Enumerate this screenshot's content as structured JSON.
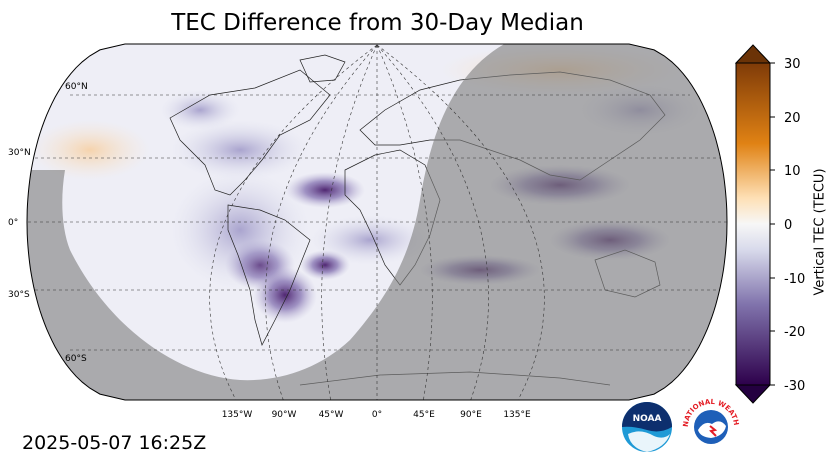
{
  "title": "TEC Difference from 30-Day Median",
  "timestamp": "2025-05-07 16:25Z",
  "colorbar": {
    "label": "Vertical TEC (TECU)",
    "ticks": [
      "30",
      "20",
      "10",
      "0",
      "-10",
      "-20",
      "-30"
    ],
    "min": -30,
    "max": 30,
    "colors": {
      "positive_max": "#7f3b08",
      "positive_mid": "#e08214",
      "positive_low": "#fee0b6",
      "zero": "#f7f7f7",
      "negative_low": "#d8daeb",
      "negative_mid": "#8073ac",
      "negative_max": "#2d004b"
    }
  },
  "map": {
    "projection": "Robinson",
    "lat_labels": [
      "60°N",
      "30°N",
      "0°",
      "30°S",
      "60°S"
    ],
    "lon_labels": [
      "135°W",
      "90°W",
      "45°W",
      "0°",
      "45°E",
      "90°E",
      "135°E"
    ],
    "night_shade": "#808080"
  },
  "logos": {
    "noaa": "NOAA",
    "nws": "NATIONAL WEATHER SERVICE"
  }
}
